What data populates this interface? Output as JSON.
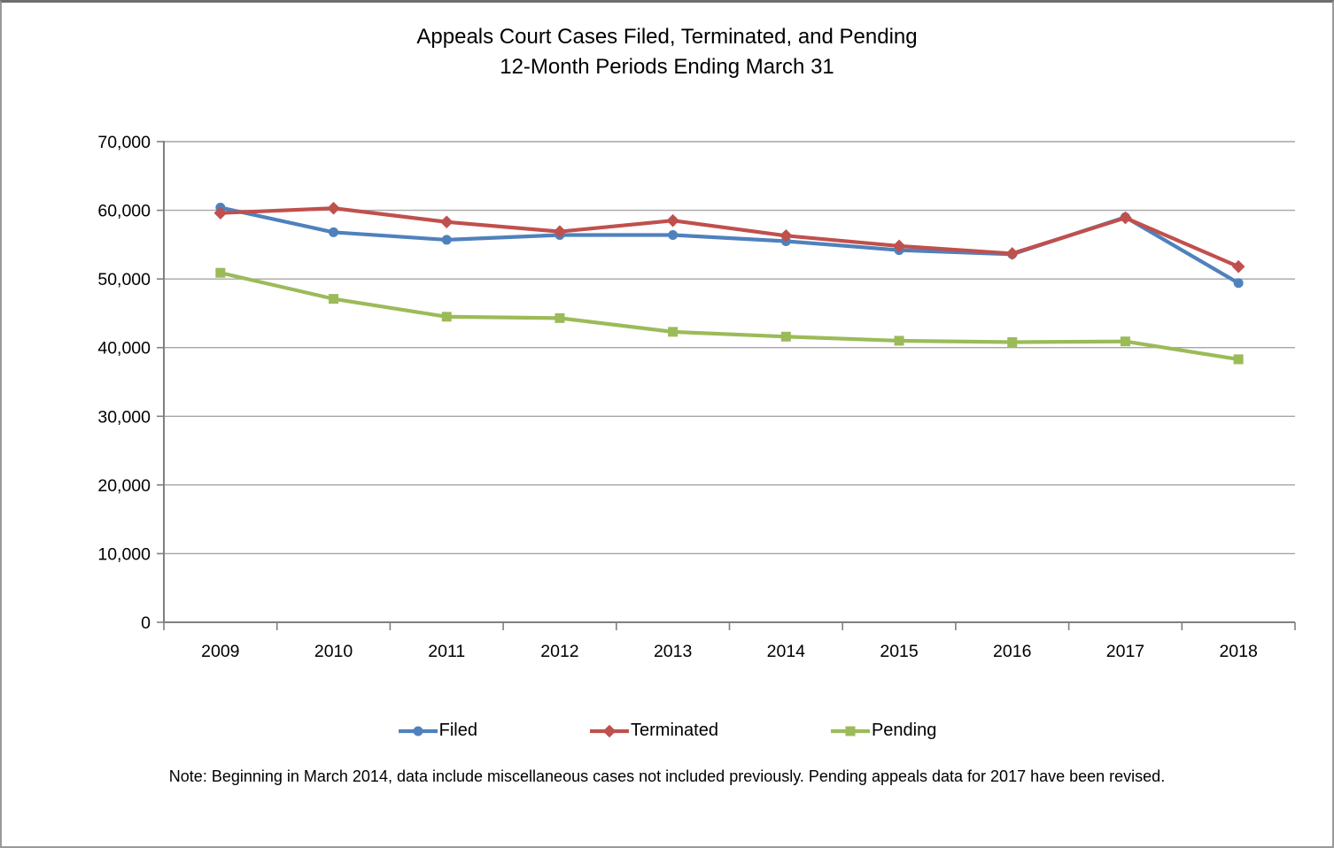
{
  "window": {
    "background": "#ffffff",
    "border_color": "#9a9a9a",
    "top_bar_color": "#6e6e6e"
  },
  "title": {
    "line1": "Appeals Court Cases Filed, Terminated, and Pending",
    "line2": "12-Month Periods Ending March 31"
  },
  "chart_data": {
    "type": "line",
    "title": "Appeals Court Cases Filed, Terminated, and Pending",
    "subtitle": "12-Month Periods Ending March 31",
    "categories": [
      "2009",
      "2010",
      "2011",
      "2012",
      "2013",
      "2014",
      "2015",
      "2016",
      "2017",
      "2018"
    ],
    "series": [
      {
        "name": "Filed",
        "marker": "circle",
        "color": "#4F81BD",
        "values": [
          60400,
          56800,
          55700,
          56400,
          56400,
          55500,
          54200,
          53600,
          59000,
          49400
        ]
      },
      {
        "name": "Terminated",
        "marker": "diamond",
        "color": "#C0504D",
        "values": [
          59600,
          60300,
          58300,
          56900,
          58500,
          56300,
          54800,
          53700,
          58900,
          51800
        ]
      },
      {
        "name": "Pending",
        "marker": "square",
        "color": "#9BBB59",
        "values": [
          50900,
          47100,
          44500,
          44300,
          42300,
          41600,
          41000,
          40800,
          40900,
          38300
        ]
      }
    ],
    "xlabel": "",
    "ylabel": "",
    "ylim": [
      0,
      70000
    ],
    "ytick_step": 10000,
    "ytick_labels": [
      "0",
      "10,000",
      "20,000",
      "30,000",
      "40,000",
      "50,000",
      "60,000",
      "70,000"
    ],
    "grid": true,
    "legend_position": "bottom",
    "gridline_color": "#A6A6A6",
    "axis_color": "#808080"
  },
  "note": "Note: Beginning in March 2014, data include miscellaneous cases not included previously. Pending appeals data for 2017 have been revised."
}
